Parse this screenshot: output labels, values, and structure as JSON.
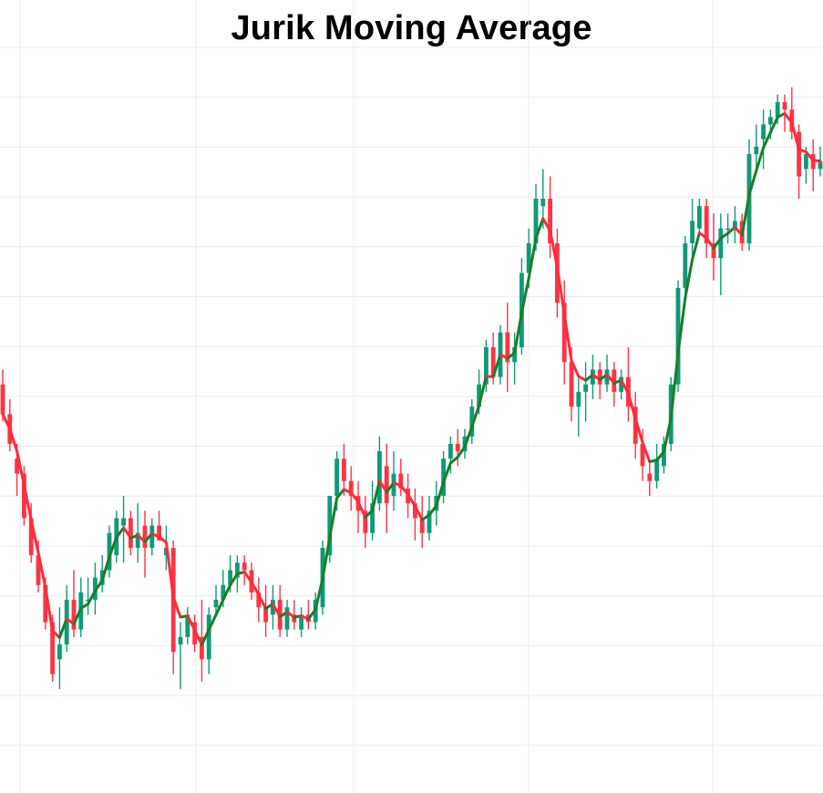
{
  "title": "Jurik Moving Average",
  "colors": {
    "up": "#0f9a78",
    "down": "#ff3344",
    "grid": "#ececec",
    "jma_up": "#1b7d2a",
    "jma_down": "#ff2b38"
  },
  "chart_data": {
    "type": "candlestick",
    "title": "Jurik Moving Average",
    "xlabel": "",
    "ylabel": "",
    "grid": true,
    "ylim": [
      0,
      100
    ],
    "series": [
      {
        "kind": "ohlc",
        "candles": [
          {
            "o": 55,
            "h": 57,
            "l": 50,
            "c": 51
          },
          {
            "o": 51,
            "h": 53,
            "l": 46,
            "c": 47
          },
          {
            "o": 45,
            "h": 47,
            "l": 40,
            "c": 43
          },
          {
            "o": 43,
            "h": 44,
            "l": 36,
            "c": 37
          },
          {
            "o": 37,
            "h": 39,
            "l": 31,
            "c": 32
          },
          {
            "o": 32,
            "h": 34,
            "l": 27,
            "c": 28
          },
          {
            "o": 28,
            "h": 29,
            "l": 22,
            "c": 23
          },
          {
            "o": 23,
            "h": 24,
            "l": 15,
            "c": 16
          },
          {
            "o": 18,
            "h": 25,
            "l": 14,
            "c": 20
          },
          {
            "o": 20,
            "h": 28,
            "l": 19,
            "c": 26
          },
          {
            "o": 26,
            "h": 30,
            "l": 21,
            "c": 22
          },
          {
            "o": 22,
            "h": 29,
            "l": 21,
            "c": 27
          },
          {
            "o": 26,
            "h": 29,
            "l": 24,
            "c": 26
          },
          {
            "o": 26,
            "h": 31,
            "l": 24,
            "c": 29
          },
          {
            "o": 28,
            "h": 32,
            "l": 27,
            "c": 30
          },
          {
            "o": 30,
            "h": 36,
            "l": 29,
            "c": 35
          },
          {
            "o": 32,
            "h": 38,
            "l": 31,
            "c": 37
          },
          {
            "o": 36,
            "h": 40,
            "l": 31,
            "c": 37
          },
          {
            "o": 37,
            "h": 38,
            "l": 32,
            "c": 33
          },
          {
            "o": 33,
            "h": 39,
            "l": 31,
            "c": 35
          },
          {
            "o": 36,
            "h": 38,
            "l": 29,
            "c": 33
          },
          {
            "o": 33,
            "h": 37,
            "l": 32,
            "c": 36
          },
          {
            "o": 36,
            "h": 38,
            "l": 34,
            "c": 34
          },
          {
            "o": 32,
            "h": 36,
            "l": 30,
            "c": 33
          },
          {
            "o": 33,
            "h": 34,
            "l": 16,
            "c": 19
          },
          {
            "o": 20,
            "h": 23,
            "l": 14,
            "c": 21
          },
          {
            "o": 21,
            "h": 25,
            "l": 20,
            "c": 24
          },
          {
            "o": 23,
            "h": 24,
            "l": 19,
            "c": 20
          },
          {
            "o": 21,
            "h": 26,
            "l": 15,
            "c": 18
          },
          {
            "o": 18,
            "h": 25,
            "l": 16,
            "c": 24
          },
          {
            "o": 25,
            "h": 28,
            "l": 24,
            "c": 26
          },
          {
            "o": 26,
            "h": 30,
            "l": 25,
            "c": 28
          },
          {
            "o": 28,
            "h": 32,
            "l": 27,
            "c": 30
          },
          {
            "o": 29,
            "h": 32,
            "l": 27,
            "c": 31
          },
          {
            "o": 31,
            "h": 32,
            "l": 28,
            "c": 30
          },
          {
            "o": 30,
            "h": 31,
            "l": 26,
            "c": 27
          },
          {
            "o": 27,
            "h": 29,
            "l": 23,
            "c": 25
          },
          {
            "o": 25,
            "h": 28,
            "l": 21,
            "c": 23
          },
          {
            "o": 24,
            "h": 28,
            "l": 22,
            "c": 26
          },
          {
            "o": 26,
            "h": 28,
            "l": 21,
            "c": 22
          },
          {
            "o": 22,
            "h": 26,
            "l": 21,
            "c": 25
          },
          {
            "o": 24,
            "h": 26,
            "l": 22,
            "c": 23
          },
          {
            "o": 22,
            "h": 25,
            "l": 21,
            "c": 24
          },
          {
            "o": 24,
            "h": 26,
            "l": 22,
            "c": 23
          },
          {
            "o": 23,
            "h": 27,
            "l": 22,
            "c": 26
          },
          {
            "o": 25,
            "h": 34,
            "l": 24,
            "c": 33
          },
          {
            "o": 32,
            "h": 40,
            "l": 31,
            "c": 40
          },
          {
            "o": 40,
            "h": 46,
            "l": 38,
            "c": 45
          },
          {
            "o": 45,
            "h": 47,
            "l": 40,
            "c": 42
          },
          {
            "o": 42,
            "h": 44,
            "l": 38,
            "c": 40
          },
          {
            "o": 40,
            "h": 42,
            "l": 35,
            "c": 38
          },
          {
            "o": 38,
            "h": 40,
            "l": 33,
            "c": 35
          },
          {
            "o": 35,
            "h": 42,
            "l": 34,
            "c": 39
          },
          {
            "o": 39,
            "h": 48,
            "l": 38,
            "c": 46
          },
          {
            "o": 44,
            "h": 47,
            "l": 35,
            "c": 39
          },
          {
            "o": 40,
            "h": 46,
            "l": 38,
            "c": 43
          },
          {
            "o": 43,
            "h": 45,
            "l": 40,
            "c": 41
          },
          {
            "o": 41,
            "h": 43,
            "l": 37,
            "c": 39
          },
          {
            "o": 39,
            "h": 41,
            "l": 34,
            "c": 37
          },
          {
            "o": 37,
            "h": 40,
            "l": 33,
            "c": 35
          },
          {
            "o": 35,
            "h": 40,
            "l": 34,
            "c": 38
          },
          {
            "o": 38,
            "h": 42,
            "l": 36,
            "c": 40
          },
          {
            "o": 40,
            "h": 46,
            "l": 39,
            "c": 45
          },
          {
            "o": 45,
            "h": 48,
            "l": 43,
            "c": 47
          },
          {
            "o": 47,
            "h": 49,
            "l": 44,
            "c": 46
          },
          {
            "o": 46,
            "h": 49,
            "l": 45,
            "c": 48
          },
          {
            "o": 48,
            "h": 53,
            "l": 47,
            "c": 52
          },
          {
            "o": 52,
            "h": 57,
            "l": 51,
            "c": 55
          },
          {
            "o": 55,
            "h": 61,
            "l": 54,
            "c": 60
          },
          {
            "o": 60,
            "h": 62,
            "l": 55,
            "c": 56
          },
          {
            "o": 56,
            "h": 63,
            "l": 55,
            "c": 62
          },
          {
            "o": 62,
            "h": 66,
            "l": 54,
            "c": 58
          },
          {
            "o": 58,
            "h": 62,
            "l": 55,
            "c": 60
          },
          {
            "o": 60,
            "h": 72,
            "l": 59,
            "c": 70
          },
          {
            "o": 70,
            "h": 76,
            "l": 68,
            "c": 74
          },
          {
            "o": 74,
            "h": 82,
            "l": 73,
            "c": 80
          },
          {
            "o": 79,
            "h": 84,
            "l": 76,
            "c": 80
          },
          {
            "o": 80,
            "h": 83,
            "l": 72,
            "c": 74
          },
          {
            "o": 74,
            "h": 76,
            "l": 64,
            "c": 66
          },
          {
            "o": 66,
            "h": 69,
            "l": 55,
            "c": 58
          },
          {
            "o": 58,
            "h": 60,
            "l": 50,
            "c": 52
          },
          {
            "o": 52,
            "h": 56,
            "l": 48,
            "c": 54
          },
          {
            "o": 54,
            "h": 58,
            "l": 50,
            "c": 55
          },
          {
            "o": 55,
            "h": 59,
            "l": 53,
            "c": 57
          },
          {
            "o": 57,
            "h": 58,
            "l": 53,
            "c": 55
          },
          {
            "o": 55,
            "h": 59,
            "l": 54,
            "c": 57
          },
          {
            "o": 57,
            "h": 58,
            "l": 52,
            "c": 54
          },
          {
            "o": 54,
            "h": 57,
            "l": 53,
            "c": 56
          },
          {
            "o": 56,
            "h": 60,
            "l": 50,
            "c": 52
          },
          {
            "o": 52,
            "h": 54,
            "l": 45,
            "c": 47
          },
          {
            "o": 47,
            "h": 49,
            "l": 42,
            "c": 44
          },
          {
            "o": 43,
            "h": 45,
            "l": 40,
            "c": 42
          },
          {
            "o": 42,
            "h": 47,
            "l": 41,
            "c": 45
          },
          {
            "o": 44,
            "h": 48,
            "l": 43,
            "c": 47
          },
          {
            "o": 47,
            "h": 56,
            "l": 46,
            "c": 55
          },
          {
            "o": 55,
            "h": 69,
            "l": 54,
            "c": 68
          },
          {
            "o": 68,
            "h": 75,
            "l": 67,
            "c": 74
          },
          {
            "o": 74,
            "h": 80,
            "l": 72,
            "c": 77
          },
          {
            "o": 76,
            "h": 80,
            "l": 75,
            "c": 79
          },
          {
            "o": 79,
            "h": 80,
            "l": 72,
            "c": 74
          },
          {
            "o": 74,
            "h": 78,
            "l": 69,
            "c": 72
          },
          {
            "o": 72,
            "h": 78,
            "l": 67,
            "c": 76
          },
          {
            "o": 76,
            "h": 78,
            "l": 74,
            "c": 76
          },
          {
            "o": 76,
            "h": 79,
            "l": 74,
            "c": 77
          },
          {
            "o": 77,
            "h": 78,
            "l": 73,
            "c": 74
          },
          {
            "o": 74,
            "h": 88,
            "l": 73,
            "c": 86
          },
          {
            "o": 86,
            "h": 90,
            "l": 84,
            "c": 87
          },
          {
            "o": 88,
            "h": 92,
            "l": 84,
            "c": 90
          },
          {
            "o": 90,
            "h": 92,
            "l": 88,
            "c": 91
          },
          {
            "o": 91,
            "h": 94,
            "l": 90,
            "c": 93
          },
          {
            "o": 93,
            "h": 94,
            "l": 89,
            "c": 92
          },
          {
            "o": 92,
            "h": 95,
            "l": 88,
            "c": 89
          },
          {
            "o": 89,
            "h": 90,
            "l": 80,
            "c": 83
          },
          {
            "o": 84,
            "h": 87,
            "l": 82,
            "c": 86
          },
          {
            "o": 86,
            "h": 88,
            "l": 81,
            "c": 84
          },
          {
            "o": 84,
            "h": 87,
            "l": 83,
            "c": 85
          }
        ]
      },
      {
        "name": "",
        "kind": "jma"
      }
    ]
  }
}
